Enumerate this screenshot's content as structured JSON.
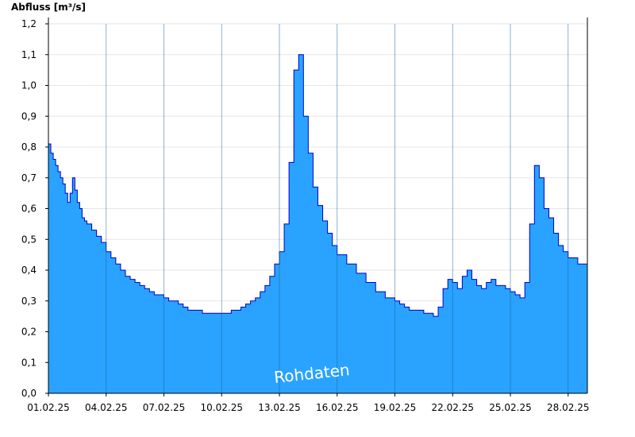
{
  "chart_data": {
    "type": "area",
    "title": "",
    "ylabel": "Abfluss [m³/s]",
    "xlabel": "",
    "ylim": [
      0,
      1.2
    ],
    "yticks": [
      "0,0",
      "0,1",
      "0,2",
      "0,3",
      "0,4",
      "0,5",
      "0,6",
      "0,7",
      "0,8",
      "0,9",
      "1,0",
      "1,1",
      "1,2"
    ],
    "xlim": [
      "01.02.25",
      "01.03.25"
    ],
    "xtick_labels": [
      "01.02.25",
      "04.02.25",
      "07.02.25",
      "10.02.25",
      "13.02.25",
      "16.02.25",
      "19.02.25",
      "22.02.25",
      "25.02.25",
      "28.02.25"
    ],
    "grid": true,
    "fill_color": "#29a3ff",
    "line_color": "#0000cc",
    "annotation": "Rohdaten",
    "series": [
      {
        "x": [
          "01.02.25 00:00",
          "01.02.25 03:00",
          "01.02.25 06:00",
          "01.02.25 09:00",
          "01.02.25 12:00",
          "01.02.25 15:00",
          "01.02.25 18:00",
          "01.02.25 21:00",
          "02.02.25 00:00",
          "02.02.25 03:00",
          "02.02.25 06:00",
          "02.02.25 09:00",
          "02.02.25 12:00",
          "02.02.25 15:00",
          "02.02.25 18:00",
          "02.02.25 21:00",
          "03.02.25 00:00",
          "03.02.25 06:00",
          "03.02.25 12:00",
          "03.02.25 18:00",
          "04.02.25 00:00",
          "04.02.25 06:00",
          "04.02.25 12:00",
          "04.02.25 18:00",
          "05.02.25 00:00",
          "05.02.25 06:00",
          "05.02.25 12:00",
          "05.02.25 18:00",
          "06.02.25 00:00",
          "06.02.25 06:00",
          "06.02.25 12:00",
          "06.02.25 18:00",
          "07.02.25 00:00",
          "07.02.25 06:00",
          "07.02.25 12:00",
          "07.02.25 18:00",
          "08.02.25 00:00",
          "08.02.25 06:00",
          "08.02.25 12:00",
          "08.02.25 18:00",
          "09.02.25 00:00",
          "09.02.25 12:00",
          "10.02.25 00:00",
          "10.02.25 12:00",
          "11.02.25 00:00",
          "11.02.25 06:00",
          "11.02.25 12:00",
          "11.02.25 18:00",
          "12.02.25 00:00",
          "12.02.25 06:00",
          "12.02.25 12:00",
          "12.02.25 18:00",
          "13.02.25 00:00",
          "13.02.25 06:00",
          "13.02.25 12:00",
          "13.02.25 18:00",
          "14.02.25 00:00",
          "14.02.25 06:00",
          "14.02.25 12:00",
          "14.02.25 18:00",
          "15.02.25 00:00",
          "15.02.25 06:00",
          "15.02.25 12:00",
          "15.02.25 18:00",
          "16.02.25 00:00",
          "16.02.25 12:00",
          "17.02.25 00:00",
          "17.02.25 12:00",
          "18.02.25 00:00",
          "18.02.25 12:00",
          "19.02.25 00:00",
          "19.02.25 06:00",
          "19.02.25 12:00",
          "19.02.25 18:00",
          "20.02.25 00:00",
          "20.02.25 12:00",
          "21.02.25 00:00",
          "21.02.25 06:00",
          "21.02.25 12:00",
          "21.02.25 18:00",
          "22.02.25 00:00",
          "22.02.25 06:00",
          "22.02.25 12:00",
          "22.02.25 18:00",
          "23.02.25 00:00",
          "23.02.25 06:00",
          "23.02.25 12:00",
          "23.02.25 18:00",
          "24.02.25 00:00",
          "24.02.25 06:00",
          "24.02.25 12:00",
          "24.02.25 18:00",
          "25.02.25 00:00",
          "25.02.25 06:00",
          "25.02.25 12:00",
          "25.02.25 18:00",
          "26.02.25 00:00",
          "26.02.25 06:00",
          "26.02.25 12:00",
          "26.02.25 18:00",
          "27.02.25 00:00",
          "27.02.25 06:00",
          "27.02.25 12:00",
          "27.02.25 18:00",
          "28.02.25 00:00",
          "28.02.25 12:00",
          "01.03.25 00:00"
        ],
        "y": [
          0.81,
          0.78,
          0.76,
          0.74,
          0.72,
          0.7,
          0.68,
          0.65,
          0.62,
          0.65,
          0.7,
          0.66,
          0.62,
          0.6,
          0.57,
          0.56,
          0.55,
          0.53,
          0.51,
          0.49,
          0.46,
          0.44,
          0.42,
          0.4,
          0.38,
          0.37,
          0.36,
          0.35,
          0.34,
          0.33,
          0.32,
          0.32,
          0.31,
          0.3,
          0.3,
          0.29,
          0.28,
          0.27,
          0.27,
          0.27,
          0.26,
          0.26,
          0.26,
          0.27,
          0.28,
          0.29,
          0.3,
          0.31,
          0.33,
          0.35,
          0.38,
          0.42,
          0.46,
          0.55,
          0.75,
          1.05,
          1.1,
          0.9,
          0.78,
          0.67,
          0.61,
          0.56,
          0.52,
          0.48,
          0.45,
          0.42,
          0.39,
          0.36,
          0.33,
          0.31,
          0.3,
          0.29,
          0.28,
          0.27,
          0.27,
          0.26,
          0.25,
          0.28,
          0.34,
          0.37,
          0.36,
          0.34,
          0.38,
          0.4,
          0.37,
          0.35,
          0.34,
          0.36,
          0.37,
          0.35,
          0.35,
          0.34,
          0.33,
          0.32,
          0.31,
          0.36,
          0.55,
          0.74,
          0.7,
          0.6,
          0.57,
          0.52,
          0.48,
          0.46,
          0.44,
          0.42,
          0.42
        ]
      }
    ]
  }
}
